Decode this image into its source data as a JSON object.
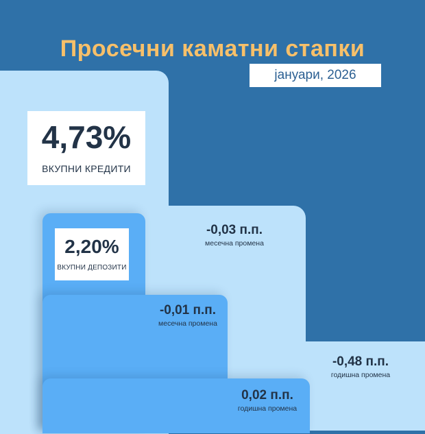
{
  "title": "Просечни каматни стапки",
  "date": "јануари, 2026",
  "loans": {
    "value": "4,73%",
    "label": "ВКУПНИ КРЕДИТИ",
    "monthly_change": "-0,03 п.п.",
    "monthly_label": "месечна промена",
    "yearly_change": "-0,48 п.п.",
    "yearly_label": "годишна промена"
  },
  "deposits": {
    "value": "2,20%",
    "label": "ВКУПНИ ДЕПОЗИТИ",
    "monthly_change": "-0,01 п.п.",
    "monthly_label": "месечна промена",
    "yearly_change": "0,02 п.п.",
    "yearly_label": "годишна промена"
  },
  "colors": {
    "background": "#2f71a8",
    "title": "#f7c06a",
    "light_stairs": "#bde2fb",
    "dark_stairs": "#5aaef6",
    "text": "#223347"
  }
}
